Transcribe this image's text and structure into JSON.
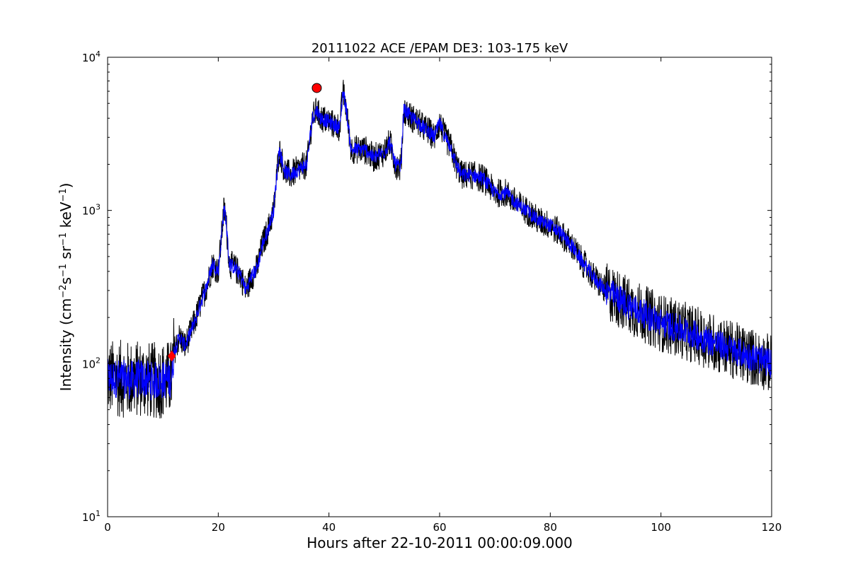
{
  "chart_data": {
    "type": "line",
    "title": "20111022 ACE /EPAM DE3: 103-175 keV",
    "xlabel": "Hours after 22-10-2011 00:00:09.000",
    "ylabel": {
      "prefix": "Intensity (cm",
      "parts": [
        {
          "text": "−2",
          "sup": true
        },
        {
          "text": "s",
          "sup": false
        },
        {
          "text": "−1",
          "sup": true
        },
        {
          "text": " sr",
          "sup": false
        },
        {
          "text": "−1",
          "sup": true
        },
        {
          "text": " keV",
          "sup": false
        },
        {
          "text": "−1",
          "sup": true
        },
        {
          "text": ")",
          "sup": false
        }
      ]
    },
    "xlim": [
      0,
      120
    ],
    "ylim": [
      10,
      10000
    ],
    "yscale": "log",
    "grid": false,
    "xticks": [
      0,
      20,
      40,
      60,
      80,
      100,
      120
    ],
    "yticks": [
      {
        "value": 10,
        "base": "10",
        "exp": "1"
      },
      {
        "value": 100,
        "base": "10",
        "exp": "2"
      },
      {
        "value": 1000,
        "base": "10",
        "exp": "3"
      },
      {
        "value": 10000,
        "base": "10",
        "exp": "4"
      }
    ],
    "series": [
      {
        "color": "#0000ff",
        "x": [
          0,
          2,
          4,
          6,
          8,
          10,
          11.5,
          12,
          13,
          14,
          15,
          16,
          17,
          18,
          19,
          20,
          21,
          21.3,
          22,
          23,
          24,
          25,
          26,
          27,
          28,
          29,
          30,
          31,
          32,
          33,
          34,
          35,
          36,
          37,
          37.8,
          38.5,
          40,
          41,
          42,
          42.5,
          43,
          44,
          45,
          46,
          47,
          48,
          49,
          50,
          51,
          52,
          53,
          53.5,
          54,
          55,
          56,
          57,
          58,
          59,
          60,
          61,
          62,
          63,
          64,
          66,
          68,
          70,
          72,
          74,
          76,
          78,
          80,
          82,
          84,
          86,
          88,
          90,
          95,
          100,
          105,
          110,
          115,
          120
        ],
        "y": [
          80,
          80,
          78,
          80,
          77,
          78,
          80,
          120,
          150,
          130,
          160,
          200,
          260,
          330,
          450,
          400,
          1000,
          950,
          450,
          420,
          380,
          300,
          370,
          420,
          600,
          750,
          1000,
          2500,
          1800,
          1700,
          1800,
          1900,
          2000,
          4000,
          4500,
          4000,
          3800,
          3600,
          3500,
          6000,
          5000,
          2500,
          2500,
          2500,
          2450,
          2200,
          2300,
          2400,
          2800,
          2000,
          1900,
          4500,
          4400,
          4000,
          3800,
          3500,
          3300,
          3000,
          3700,
          3000,
          2600,
          2000,
          1700,
          1700,
          1600,
          1300,
          1300,
          1100,
          980,
          850,
          800,
          700,
          580,
          450,
          360,
          300,
          230,
          185,
          160,
          135,
          115,
          100
        ]
      }
    ],
    "markers": [
      {
        "type": "circle",
        "x": 37.8,
        "y": 6300,
        "color": "#ff0000"
      },
      {
        "type": "diamond",
        "x": 11.6,
        "y": 112,
        "color": "#ff0000"
      }
    ]
  }
}
